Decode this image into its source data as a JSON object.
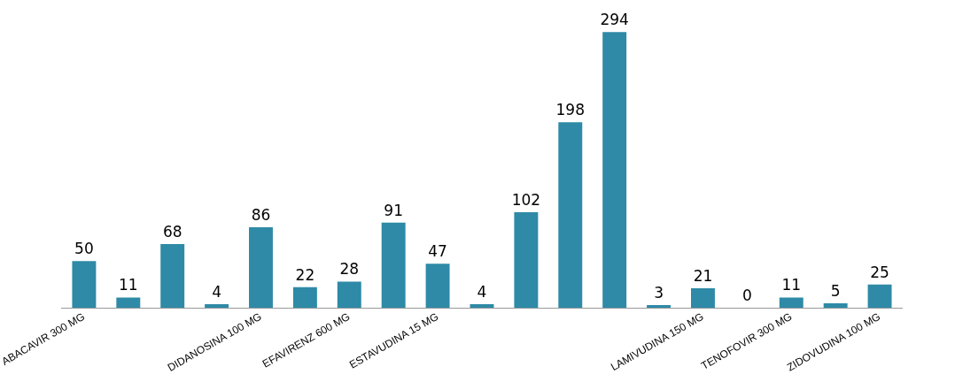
{
  "chart_data": {
    "type": "bar",
    "categories": [
      "ABACAVIR 300 MG",
      null,
      null,
      null,
      "DIDANOSINA 100 MG",
      null,
      "EFAVIRENZ 600 MG",
      null,
      "ESTAVUDINA 15 MG",
      null,
      null,
      null,
      null,
      null,
      "LAMIVUDINA 150 MG",
      null,
      "TENOFOVIR 300 MG",
      null,
      "ZIDOVUDINA 100 MG"
    ],
    "values": [
      50,
      11,
      68,
      4,
      86,
      22,
      28,
      91,
      47,
      4,
      102,
      198,
      294,
      3,
      21,
      0,
      11,
      5,
      25
    ],
    "color": "#2e8aa6",
    "data_labels": true,
    "grid": false,
    "legend": false
  }
}
